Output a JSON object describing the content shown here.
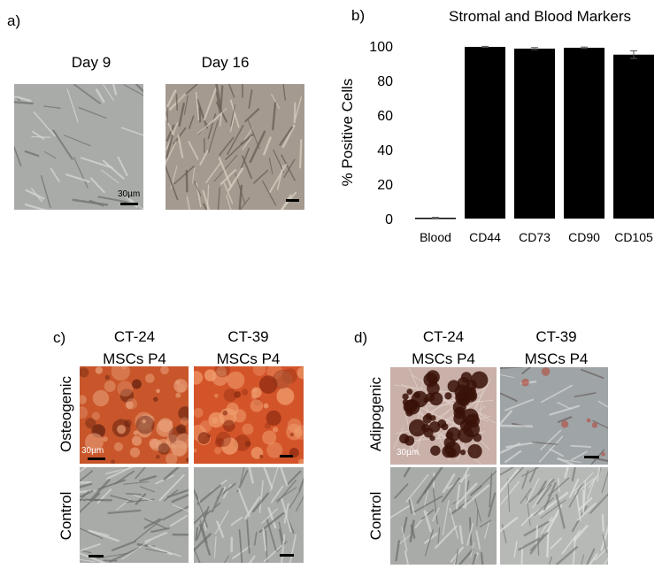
{
  "panel_a": {
    "label": "a)",
    "titles": [
      "Day 9",
      "Day 16"
    ],
    "scale_label": "30µm"
  },
  "panel_b": {
    "label": "b)"
  },
  "chart_data": {
    "type": "bar",
    "title": "Stromal and Blood Markers",
    "ylabel": "% Positive Cells",
    "xlabel": "",
    "categories": [
      "Blood",
      "CD44",
      "CD73",
      "CD90",
      "CD105"
    ],
    "values": [
      0.5,
      99.5,
      98.5,
      99.0,
      95.0
    ],
    "errors": [
      0.2,
      0.3,
      0.6,
      0.4,
      2.2
    ],
    "ylim": [
      0,
      100
    ],
    "yticks": [
      0,
      20,
      40,
      60,
      80,
      100
    ],
    "bar_color": "#000000",
    "grid": false
  },
  "panel_c": {
    "label": "c)",
    "columns": [
      {
        "line1": "CT-24",
        "line2": "MSCs P4"
      },
      {
        "line1": "CT-39",
        "line2": "MSCs P4"
      }
    ],
    "rows": [
      "Osteogenic",
      "Control"
    ],
    "scale_label": "30µm"
  },
  "panel_d": {
    "label": "d)",
    "columns": [
      {
        "line1": "CT-24",
        "line2": "MSCs P4"
      },
      {
        "line1": "CT-39",
        "line2": "MSCs P4"
      }
    ],
    "rows": [
      "Adipogenic",
      "Control"
    ],
    "scale_label": "30µm"
  },
  "colors": {
    "phase_contrast_bg": "#a9aba8",
    "alizarin_red": "#c8562a",
    "oil_red_dark": "#3a1208",
    "adipo_light_bg": "#9fa4a6"
  }
}
